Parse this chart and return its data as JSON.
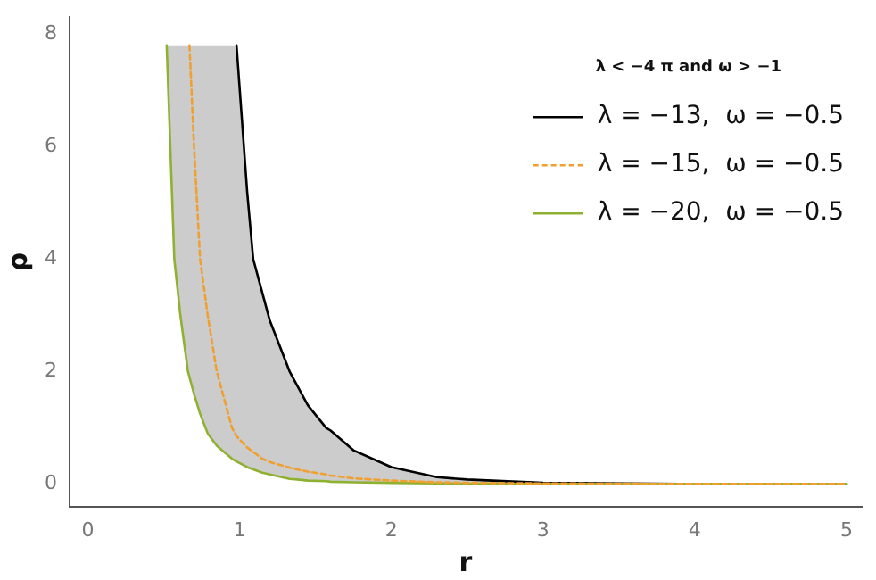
{
  "chart_data": {
    "type": "line",
    "xlabel": "r",
    "ylabel": "ρ",
    "legend_title": "λ < −4 π and ω > −1",
    "legend": "top right",
    "grid": false,
    "x": [
      0.52,
      0.57,
      0.61,
      0.66,
      0.67,
      0.7,
      0.74,
      0.79,
      0.85,
      0.95,
      0.98,
      1.05,
      1.09,
      1.15,
      1.2,
      1.33,
      1.38,
      1.45,
      1.57,
      1.6,
      1.75,
      2,
      2.3,
      2.5,
      3,
      4,
      5
    ],
    "xlim": [
      -0.12,
      5.1
    ],
    "xticks": [
      0,
      1,
      2,
      3,
      4,
      5
    ],
    "ylim": [
      -0.4,
      8.3
    ],
    "yticks": [
      0,
      2,
      4,
      6,
      8
    ],
    "series": [
      {
        "name": "λ = −13,  ω = −0.5",
        "color": "#000000",
        "values": [
          null,
          null,
          null,
          null,
          null,
          null,
          null,
          null,
          null,
          null,
          7.8,
          5.2,
          4,
          3.4,
          2.9,
          2,
          1.75,
          1.4,
          1,
          0.95,
          0.6,
          0.3,
          0.12,
          0.08,
          0.02,
          0,
          0
        ]
      },
      {
        "name": "λ = −15,  ω = −0.5",
        "color": "#f0a030",
        "line_style": "dashed",
        "values": [
          null,
          null,
          null,
          null,
          7.8,
          6,
          4,
          3,
          2,
          1,
          0.85,
          0.65,
          0.57,
          0.45,
          0.39,
          0.29,
          0.26,
          0.22,
          0.17,
          0.15,
          0.1,
          0.06,
          0.03,
          0.02,
          0.01,
          0,
          0
        ],
        "lower": [
          7.8,
          4,
          3,
          2,
          1.9,
          1.6,
          1.25,
          0.9,
          0.68,
          0.45,
          0.4,
          0.3,
          0.26,
          0.2,
          0.17,
          0.09,
          0.08,
          0.06,
          0.05,
          0.04,
          0.03,
          0.02,
          0.01,
          0,
          0,
          0,
          0
        ],
        "upper": [
          7.8,
          7.8,
          7.8,
          7.8,
          7.8,
          7.8,
          7.8,
          7.8,
          7.8,
          7.8,
          7.8,
          5.2,
          4,
          3.4,
          2.9,
          2,
          1.75,
          1.4,
          1,
          0.95,
          0.6,
          0.3,
          0.12,
          0.08,
          0.02,
          0,
          0
        ]
      },
      {
        "name": "λ = −20,  ω = −0.5",
        "color": "#8fb131",
        "values": [
          7.8,
          4,
          3,
          2,
          1.9,
          1.6,
          1.25,
          0.9,
          0.68,
          0.45,
          0.4,
          0.3,
          0.26,
          0.2,
          0.17,
          0.09,
          0.08,
          0.06,
          0.05,
          0.04,
          0.03,
          0.02,
          0.01,
          0,
          0,
          0,
          0
        ]
      }
    ]
  }
}
